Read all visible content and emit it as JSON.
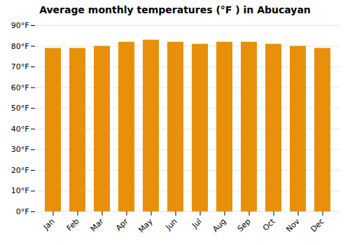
{
  "chart_data": {
    "type": "bar",
    "title": "Average monthly temperatures (°F ) in Abucayan",
    "categories": [
      "Jan",
      "Feb",
      "Mar",
      "Apr",
      "May",
      "Jun",
      "Jul",
      "Aug",
      "Sep",
      "Oct",
      "Nov",
      "Dec"
    ],
    "values": [
      79,
      79,
      80,
      82,
      83,
      82,
      81,
      82,
      82,
      81,
      80,
      79
    ],
    "color": "#E8900A",
    "ylim": [
      0,
      90
    ],
    "yticks": [
      {
        "value": 0,
        "label": "0°F"
      },
      {
        "value": 10,
        "label": "10°F"
      },
      {
        "value": 20,
        "label": "20°F"
      },
      {
        "value": 30,
        "label": "30°F"
      },
      {
        "value": 40,
        "label": "40°F"
      },
      {
        "value": 50,
        "label": "50°F"
      },
      {
        "value": 60,
        "label": "60°F"
      },
      {
        "value": 70,
        "label": "70°F"
      },
      {
        "value": 80,
        "label": "80°F"
      },
      {
        "value": 90,
        "label": "90°F"
      }
    ],
    "grid": true
  }
}
